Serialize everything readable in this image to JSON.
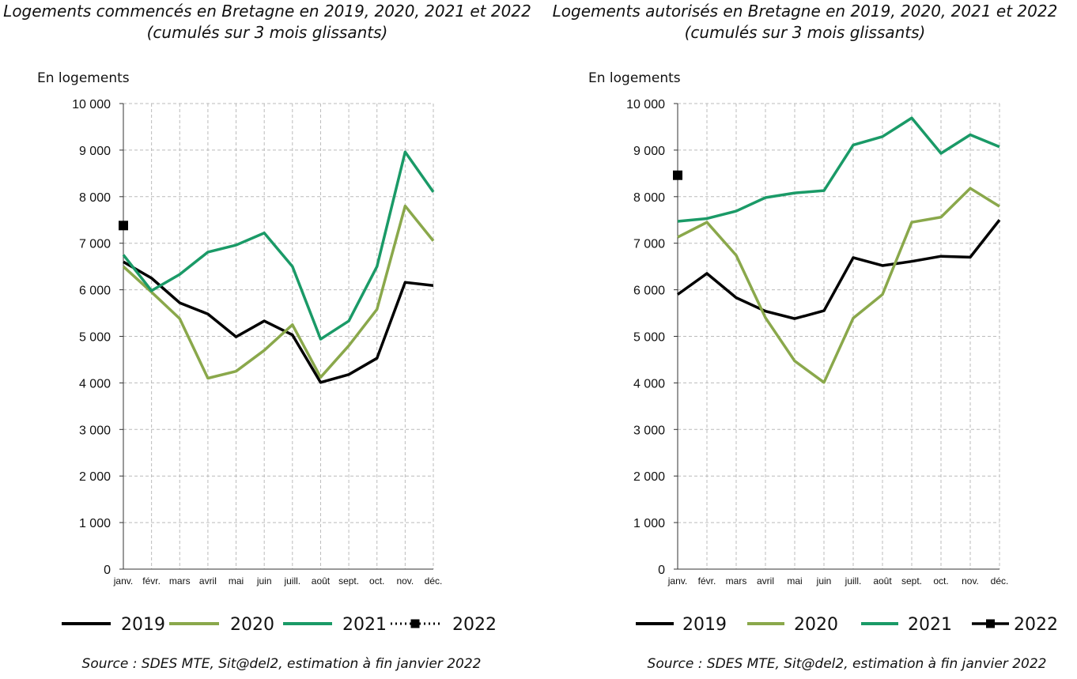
{
  "chart_data": [
    {
      "type": "line",
      "title": "Logements commencés en Bretagne en 2019, 2020, 2021 et 2022",
      "subtitle": "(cumulés sur 3 mois glissants)",
      "ylabel": "En logements",
      "ylim": [
        0,
        10000
      ],
      "yticks": [
        0,
        1000,
        2000,
        3000,
        4000,
        5000,
        6000,
        7000,
        8000,
        9000,
        10000
      ],
      "ytick_labels": [
        "0",
        "1 000",
        "2 000",
        "3 000",
        "4 000",
        "5 000",
        "6 000",
        "7 000",
        "8 000",
        "9 000",
        "10 000"
      ],
      "categories": [
        "janv.",
        "févr.",
        "mars",
        "avril",
        "mai",
        "juin",
        "juill.",
        "août",
        "sept.",
        "oct.",
        "nov.",
        "déc."
      ],
      "grid": true,
      "legend_position": "bottom",
      "series": [
        {
          "name": "2019",
          "color": "#000000",
          "style": "line",
          "values": [
            6600,
            6250,
            5720,
            5480,
            4990,
            5330,
            5030,
            4010,
            4180,
            4530,
            6160,
            6090
          ]
        },
        {
          "name": "2020",
          "color": "#8aa84b",
          "style": "line",
          "values": [
            6500,
            5950,
            5380,
            4100,
            4250,
            4700,
            5250,
            4120,
            4800,
            5580,
            7800,
            7050
          ]
        },
        {
          "name": "2021",
          "color": "#1a9a67",
          "style": "line",
          "values": [
            6750,
            5980,
            6330,
            6810,
            6960,
            7220,
            6500,
            4940,
            5330,
            6500,
            8960,
            8100
          ]
        },
        {
          "name": "2022",
          "color": "#000000",
          "style": "dotted-marker",
          "values": [
            7380,
            null,
            null,
            null,
            null,
            null,
            null,
            null,
            null,
            null,
            null,
            null
          ]
        }
      ],
      "source": "Source : SDES MTE, Sit@del2, estimation à fin janvier 2022"
    },
    {
      "type": "line",
      "title": "Logements autorisés en Bretagne en 2019, 2020, 2021 et 2022",
      "subtitle": "(cumulés sur 3 mois glissants)",
      "ylabel": "En logements",
      "ylim": [
        0,
        10000
      ],
      "yticks": [
        0,
        1000,
        2000,
        3000,
        4000,
        5000,
        6000,
        7000,
        8000,
        9000,
        10000
      ],
      "ytick_labels": [
        "0",
        "1 000",
        "2 000",
        "3 000",
        "4 000",
        "5 000",
        "6 000",
        "7 000",
        "8 000",
        "9 000",
        "10 000"
      ],
      "categories": [
        "janv.",
        "févr.",
        "mars",
        "avril",
        "mai",
        "juin",
        "juill.",
        "août",
        "sept.",
        "oct.",
        "nov.",
        "déc."
      ],
      "grid": true,
      "legend_position": "bottom",
      "series": [
        {
          "name": "2019",
          "color": "#000000",
          "style": "line",
          "values": [
            5900,
            6350,
            5830,
            5540,
            5380,
            5550,
            6690,
            6520,
            6610,
            6720,
            6700,
            7500
          ]
        },
        {
          "name": "2020",
          "color": "#8aa84b",
          "style": "line",
          "values": [
            7130,
            7450,
            6740,
            5400,
            4470,
            4010,
            5390,
            5900,
            7450,
            7560,
            8180,
            7790
          ]
        },
        {
          "name": "2021",
          "color": "#1a9a67",
          "style": "line",
          "values": [
            7470,
            7530,
            7690,
            7980,
            8080,
            8130,
            9110,
            9290,
            9690,
            8930,
            9330,
            9070
          ]
        },
        {
          "name": "2022",
          "color": "#000000",
          "style": "solid-marker",
          "values": [
            8460,
            null,
            null,
            null,
            null,
            null,
            null,
            null,
            null,
            null,
            null,
            null
          ]
        }
      ],
      "source": "Source : SDES MTE, Sit@del2, estimation à fin janvier 2022"
    }
  ]
}
